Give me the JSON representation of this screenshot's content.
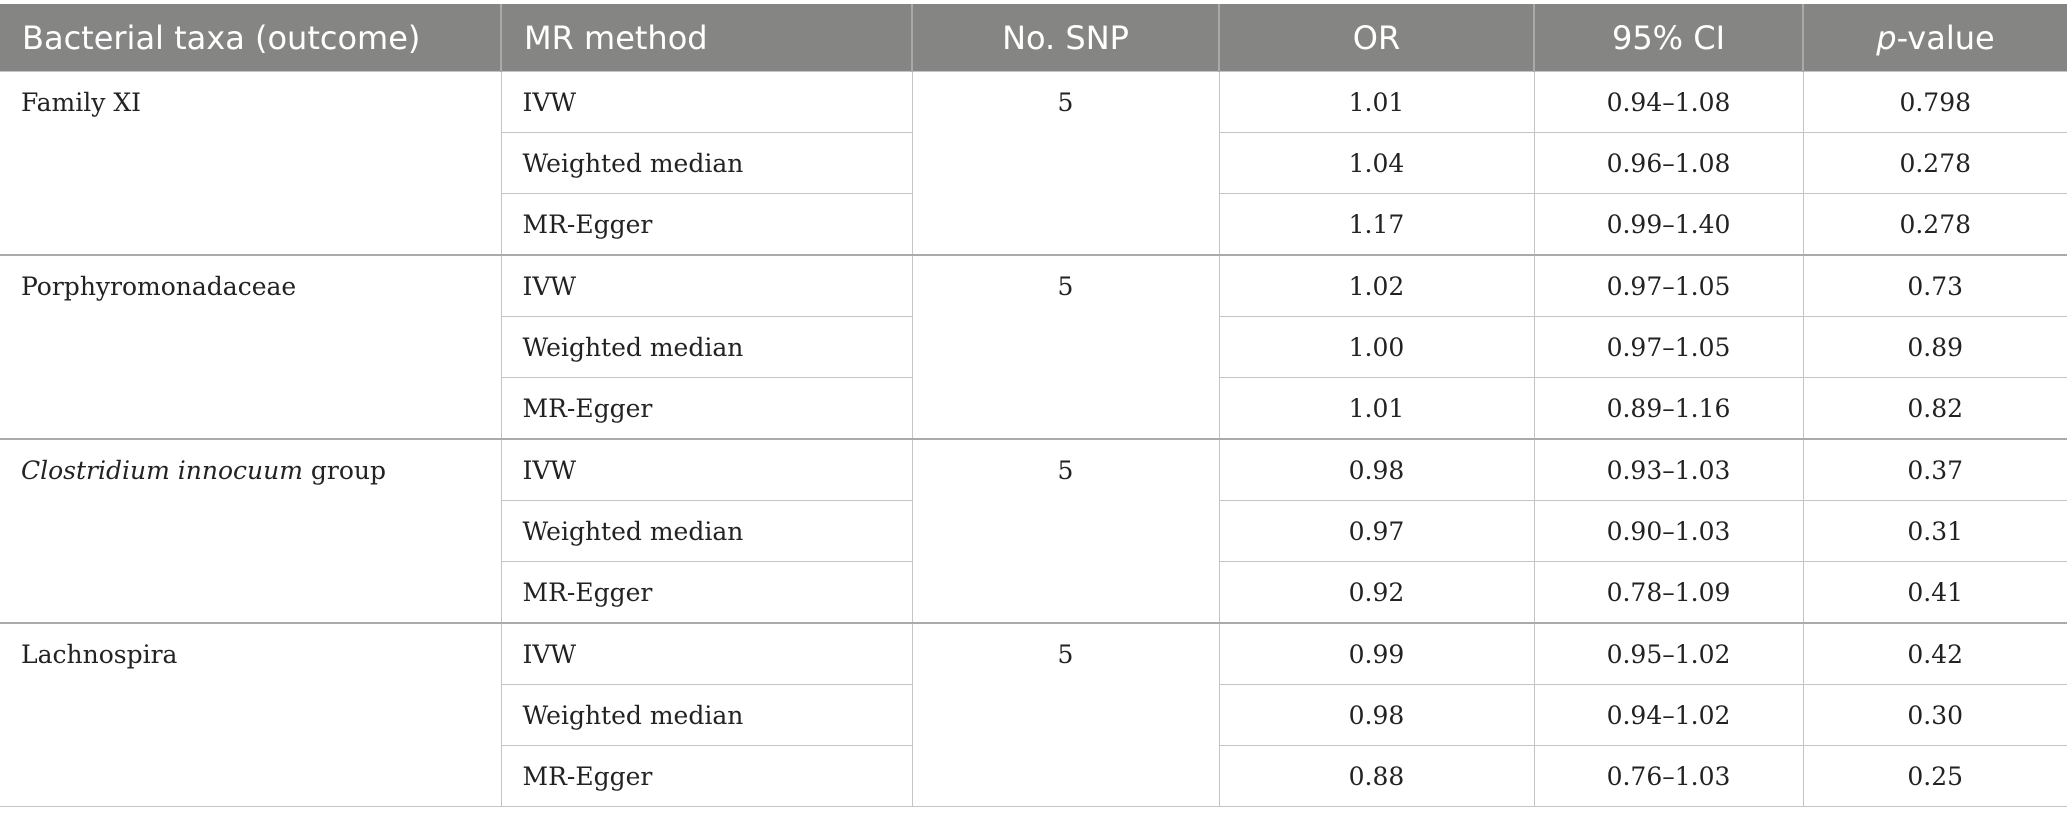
{
  "table": {
    "headers": {
      "taxa": "Bacterial taxa (outcome)",
      "method": "MR method",
      "snp": "No. SNP",
      "or": "OR",
      "ci": "95% CI",
      "p_italic": "p",
      "p_rest": "-value"
    },
    "groups": [
      {
        "taxa_italic": "",
        "taxa_rest": "Family XI",
        "snp": "5",
        "rows": [
          {
            "method": "IVW",
            "or": "1.01",
            "ci": "0.94–1.08",
            "p": "0.798"
          },
          {
            "method": "Weighted median",
            "or": "1.04",
            "ci": "0.96–1.08",
            "p": "0.278"
          },
          {
            "method": "MR-Egger",
            "or": "1.17",
            "ci": "0.99–1.40",
            "p": "0.278"
          }
        ]
      },
      {
        "taxa_italic": "",
        "taxa_rest": "Porphyromonadaceae",
        "snp": "5",
        "rows": [
          {
            "method": "IVW",
            "or": "1.02",
            "ci": "0.97–1.05",
            "p": "0.73"
          },
          {
            "method": "Weighted median",
            "or": "1.00",
            "ci": "0.97–1.05",
            "p": "0.89"
          },
          {
            "method": "MR-Egger",
            "or": "1.01",
            "ci": "0.89–1.16",
            "p": "0.82"
          }
        ]
      },
      {
        "taxa_italic": "Clostridium innocuum",
        "taxa_rest": " group",
        "snp": "5",
        "rows": [
          {
            "method": "IVW",
            "or": "0.98",
            "ci": "0.93–1.03",
            "p": "0.37"
          },
          {
            "method": "Weighted median",
            "or": "0.97",
            "ci": "0.90–1.03",
            "p": "0.31"
          },
          {
            "method": "MR-Egger",
            "or": "0.92",
            "ci": "0.78–1.09",
            "p": "0.41"
          }
        ]
      },
      {
        "taxa_italic": "",
        "taxa_rest": "Lachnospira",
        "snp": "5",
        "rows": [
          {
            "method": "IVW",
            "or": "0.99",
            "ci": "0.95–1.02",
            "p": "0.42"
          },
          {
            "method": "Weighted median",
            "or": "0.98",
            "ci": "0.94–1.02",
            "p": "0.30"
          },
          {
            "method": "MR-Egger",
            "or": "0.88",
            "ci": "0.76–1.03",
            "p": "0.25"
          }
        ]
      }
    ]
  }
}
